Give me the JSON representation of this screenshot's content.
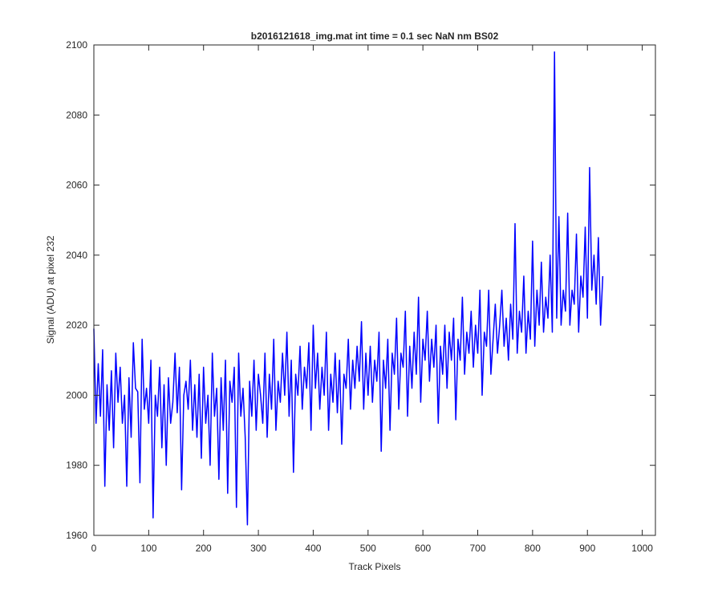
{
  "colors": {
    "line": "#0000ff",
    "axes": "#262626",
    "background": "#ffffff"
  },
  "chart_data": {
    "type": "line",
    "title": "b2016121618_img.mat int time = 0.1 sec  NaN nm BS02",
    "xlabel": "Track Pixels",
    "ylabel": "Signal (ADU) at pixel 232",
    "xlim": [
      0,
      1024
    ],
    "ylim": [
      1960,
      2100
    ],
    "xticks": [
      0,
      100,
      200,
      300,
      400,
      500,
      600,
      700,
      800,
      900,
      1000
    ],
    "yticks": [
      1960,
      1980,
      2000,
      2020,
      2040,
      2060,
      2080,
      2100
    ],
    "grid": false,
    "legend": "none",
    "series": [
      {
        "x_start": 0,
        "x_step": 4,
        "values": [
          2019,
          1992,
          2009,
          1994,
          2013,
          1974,
          2003,
          1990,
          2007,
          1985,
          2012,
          1998,
          2008,
          1992,
          2000,
          1974,
          2005,
          1988,
          2015,
          2002,
          2001,
          1975,
          2016,
          1996,
          2002,
          1992,
          2010,
          1965,
          2000,
          1994,
          2008,
          1985,
          2003,
          1980,
          2005,
          1992,
          1998,
          2012,
          1995,
          2008,
          1973,
          2000,
          2004,
          1996,
          2010,
          1990,
          2003,
          1988,
          2006,
          1982,
          2008,
          1992,
          2000,
          1980,
          2012,
          1994,
          2002,
          1976,
          2005,
          1990,
          2010,
          1972,
          2004,
          1998,
          2008,
          1968,
          2012,
          1994,
          2002,
          1988,
          1963,
          2004,
          1994,
          2010,
          1990,
          2006,
          2000,
          1992,
          2012,
          1988,
          2006,
          1996,
          2016,
          1990,
          2004,
          1998,
          2012,
          2000,
          2018,
          1994,
          2010,
          1978,
          2006,
          2000,
          2014,
          1996,
          2008,
          2002,
          2015,
          1990,
          2020,
          2002,
          2012,
          1996,
          2008,
          2000,
          2018,
          1990,
          2006,
          1998,
          2012,
          1995,
          2010,
          1986,
          2006,
          2002,
          2016,
          1996,
          2010,
          2002,
          2014,
          2004,
          2021,
          1996,
          2012,
          2000,
          2014,
          1998,
          2010,
          2004,
          2018,
          1984,
          2010,
          2002,
          2016,
          1990,
          2012,
          2006,
          2022,
          1996,
          2012,
          2008,
          2024,
          1994,
          2014,
          2002,
          2018,
          2006,
          2028,
          1998,
          2016,
          2010,
          2024,
          2004,
          2016,
          2008,
          2020,
          1992,
          2014,
          2006,
          2020,
          2002,
          2018,
          2010,
          2022,
          1993,
          2016,
          2010,
          2028,
          2006,
          2018,
          2012,
          2024,
          2008,
          2020,
          2012,
          2030,
          2000,
          2018,
          2014,
          2030,
          2006,
          2016,
          2026,
          2012,
          2020,
          2030,
          2014,
          2022,
          2010,
          2026,
          2016,
          2049,
          2012,
          2024,
          2018,
          2034,
          2012,
          2024,
          2016,
          2044,
          2014,
          2030,
          2020,
          2038,
          2018,
          2028,
          2022,
          2040,
          2018,
          2098,
          2022,
          2051,
          2020,
          2030,
          2024,
          2052,
          2020,
          2030,
          2026,
          2046,
          2018,
          2034,
          2028,
          2048,
          2022,
          2065,
          2030,
          2040,
          2026,
          2045,
          2020,
          2034
        ]
      }
    ]
  }
}
